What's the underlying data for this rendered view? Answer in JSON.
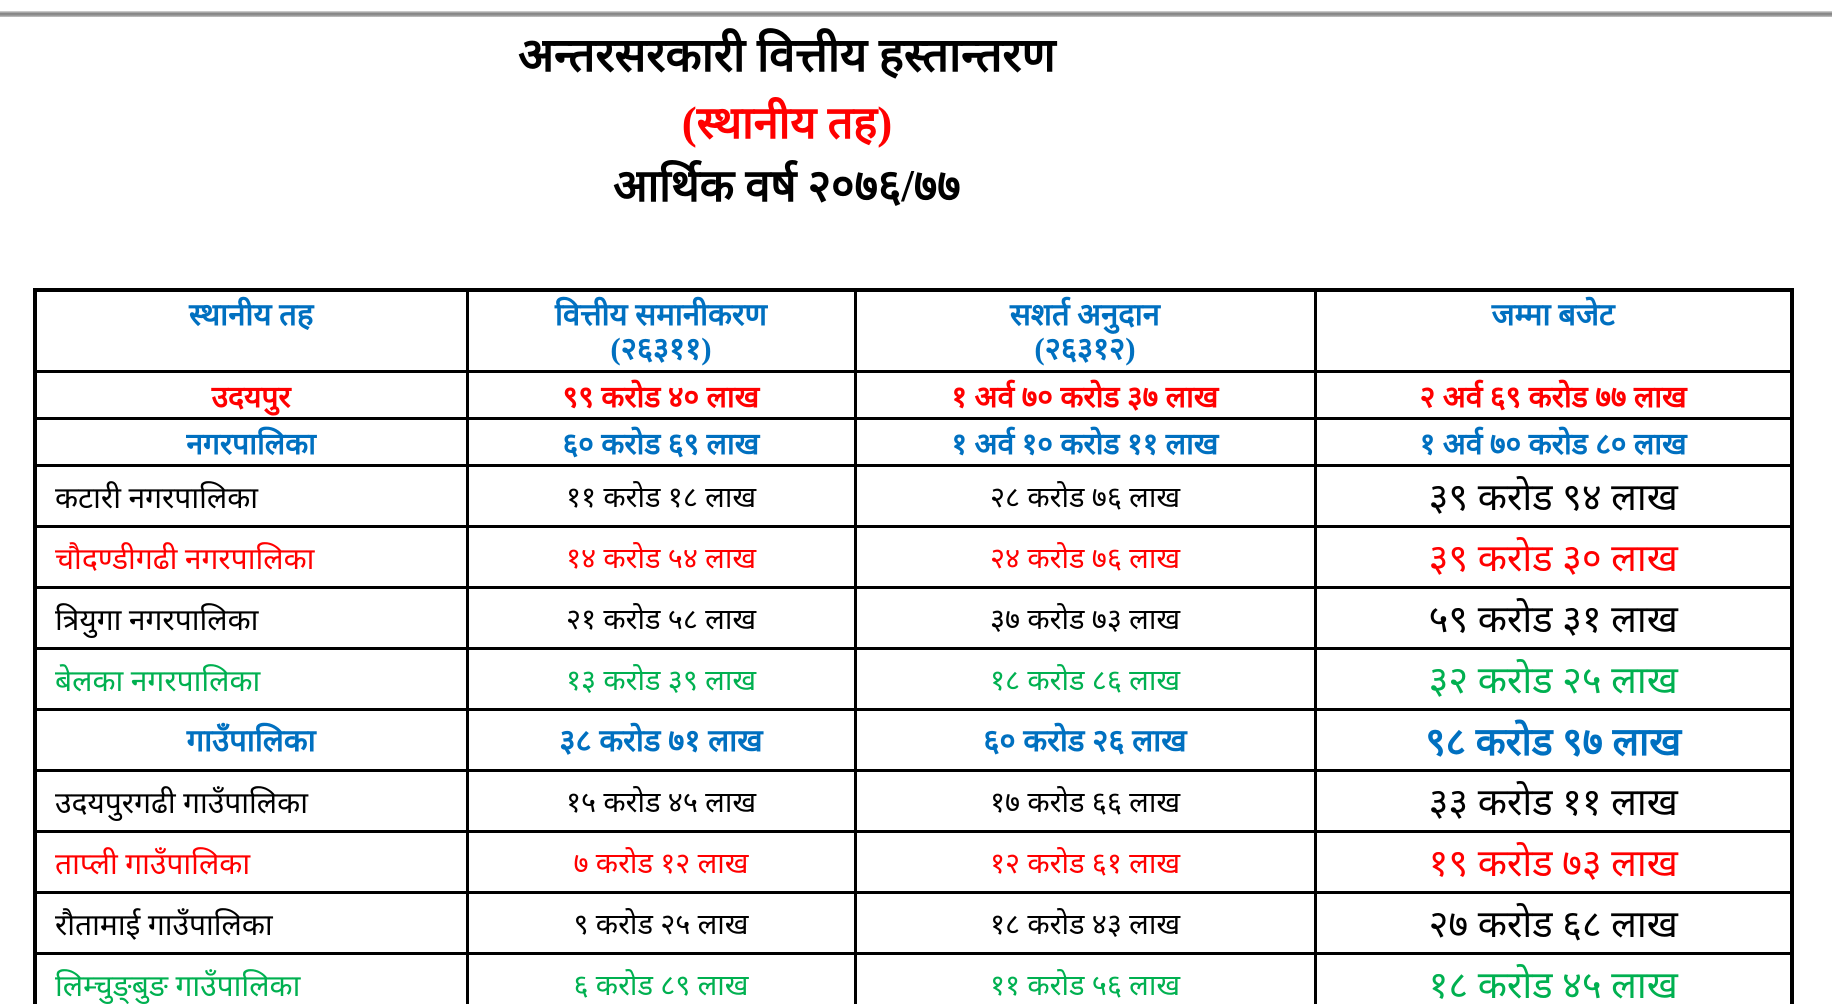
{
  "title": {
    "line1": "अन्तरसरकारी वित्तीय हस्तान्तरण",
    "line2": "(स्थानीय तह)",
    "line3": "आर्थिक वर्ष २०७६/७७"
  },
  "colors": {
    "red": "#ff0000",
    "blue": "#0070c0",
    "green": "#00b050",
    "black": "#000000"
  },
  "table": {
    "headers": [
      {
        "label": "स्थानीय तह",
        "code": ""
      },
      {
        "label": "वित्तीय समानीकरण",
        "code": "(२६३११)"
      },
      {
        "label": "सशर्त अनुदान",
        "code": "(२६३१२)"
      },
      {
        "label": "जम्मा बजेट",
        "code": ""
      }
    ],
    "rows": [
      {
        "name": "उदयपुर",
        "fiscal_equalization": "९९ करोड ४० लाख",
        "conditional_grant": "१ अर्व ७० करोड ३७ लाख",
        "total_budget": "२ अर्व ६९ करोड ७७ लाख",
        "color": "red",
        "kind": "summary"
      },
      {
        "name": "नगरपालिका",
        "fiscal_equalization": "६० करोड ६९ लाख",
        "conditional_grant": "१ अर्व १० करोड ११ लाख",
        "total_budget": "१ अर्व ७० करोड ८० लाख",
        "color": "blue",
        "kind": "summary"
      },
      {
        "name": "कटारी नगरपालिका",
        "fiscal_equalization": "११ करोड १८ लाख",
        "conditional_grant": "२८ करोड ७६ लाख",
        "total_budget": "३९ करोड ९४ लाख",
        "color": "black",
        "kind": "detail"
      },
      {
        "name": "चौदण्डीगढी नगरपालिका",
        "fiscal_equalization": "१४ करोड ५४ लाख",
        "conditional_grant": "२४ करोड ७६ लाख",
        "total_budget": "३९ करोड ३० लाख",
        "color": "red",
        "kind": "detail"
      },
      {
        "name": "त्रियुगा नगरपालिका",
        "fiscal_equalization": "२१ करोड ५८ लाख",
        "conditional_grant": "३७ करोड ७३ लाख",
        "total_budget": "५९ करोड ३१ लाख",
        "color": "black",
        "kind": "detail"
      },
      {
        "name": "बेलका नगरपालिका",
        "fiscal_equalization": "१३ करोड ३९ लाख",
        "conditional_grant": "१८ करोड ८६ लाख",
        "total_budget": "३२ करोड २५ लाख",
        "color": "green",
        "kind": "detail"
      },
      {
        "name": "गाउँपालिका",
        "fiscal_equalization": "३८ करोड ७१ लाख",
        "conditional_grant": "६० करोड २६ लाख",
        "total_budget": "९८ करोड ९७ लाख",
        "color": "blue",
        "kind": "group"
      },
      {
        "name": "उदयपुरगढी गाउँपालिका",
        "fiscal_equalization": "१५ करोड ४५ लाख",
        "conditional_grant": "१७ करोड ६६ लाख",
        "total_budget": "३३ करोड ११ लाख",
        "color": "black",
        "kind": "detail"
      },
      {
        "name": "ताप्ली गाउँपालिका",
        "fiscal_equalization": "७ करोड १२ लाख",
        "conditional_grant": "१२ करोड ६१ लाख",
        "total_budget": "१९ करोड ७३ लाख",
        "color": "red",
        "kind": "detail"
      },
      {
        "name": "रौतामाई गाउँपालिका",
        "fiscal_equalization": "९ करोड २५ लाख",
        "conditional_grant": "१८ करोड ४३ लाख",
        "total_budget": "२७ करोड ६८ लाख",
        "color": "black",
        "kind": "detail"
      },
      {
        "name": "लिम्चुङ्बुङ गाउँपालिका",
        "fiscal_equalization": "६ करोड ८९ लाख",
        "conditional_grant": "११ करोड ५६ लाख",
        "total_budget": "१८ करोड ४५ लाख",
        "color": "green",
        "kind": "detail"
      }
    ]
  }
}
